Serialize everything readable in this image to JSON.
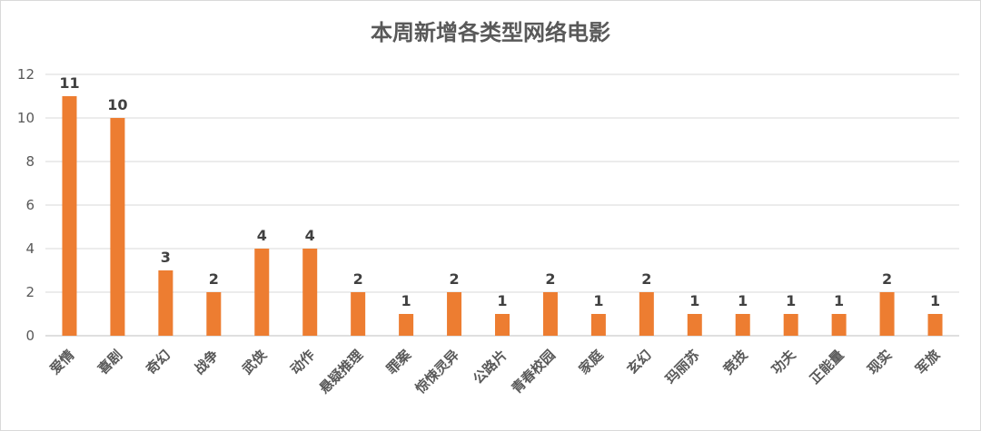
{
  "chart_data": {
    "type": "bar",
    "title": "本周新增各类型网络电影",
    "xlabel": "",
    "ylabel": "",
    "categories": [
      "爱情",
      "喜剧",
      "奇幻",
      "战争",
      "武侠",
      "动作",
      "悬疑推理",
      "罪案",
      "惊悚灵异",
      "公路片",
      "青春校园",
      "家庭",
      "玄幻",
      "玛丽苏",
      "竞技",
      "功夫",
      "正能量",
      "现实",
      "军旅"
    ],
    "values": [
      11,
      10,
      3,
      2,
      4,
      4,
      2,
      1,
      2,
      1,
      2,
      1,
      2,
      1,
      1,
      1,
      1,
      2,
      1
    ],
    "ylim": [
      0,
      12
    ],
    "yticks": [
      0,
      2,
      4,
      6,
      8,
      10,
      12
    ],
    "grid": true,
    "data_labels": true,
    "bar_color": "#ED7D31"
  }
}
